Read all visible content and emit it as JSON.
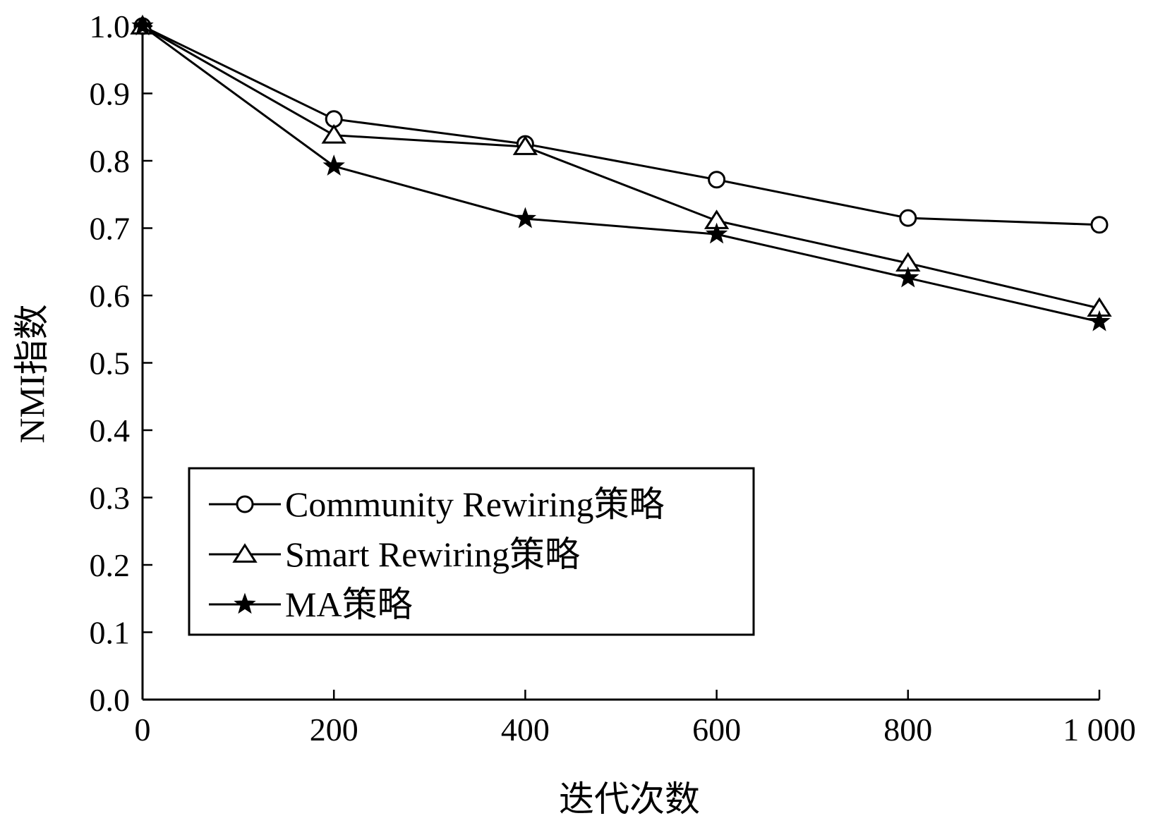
{
  "chart_data": {
    "type": "line",
    "title": "",
    "xlabel": "迭代次数",
    "ylabel": "NMI指数",
    "x": [
      0,
      200,
      400,
      600,
      800,
      1000
    ],
    "x_tick_labels": [
      "0",
      "200",
      "400",
      "600",
      "800",
      "1 000"
    ],
    "y_tick_labels": [
      "0.0",
      "0.1",
      "0.2",
      "0.3",
      "0.4",
      "0.5",
      "0.6",
      "0.7",
      "0.8",
      "0.9",
      "1.0"
    ],
    "xlim": [
      0,
      1000
    ],
    "ylim": [
      0,
      1.0
    ],
    "grid": false,
    "legend_position": "bottom-left",
    "series": [
      {
        "name": "Community Rewiring策略",
        "marker": "circle",
        "values": [
          1.0,
          0.862,
          0.825,
          0.772,
          0.715,
          0.705
        ]
      },
      {
        "name": "Smart Rewiring策略",
        "marker": "triangle",
        "values": [
          1.0,
          0.838,
          0.821,
          0.711,
          0.648,
          0.581
        ]
      },
      {
        "name": "MA策略",
        "marker": "star",
        "values": [
          1.0,
          0.792,
          0.714,
          0.691,
          0.626,
          0.561
        ]
      }
    ],
    "colors": {
      "line": "#000000",
      "background": "#ffffff"
    }
  }
}
